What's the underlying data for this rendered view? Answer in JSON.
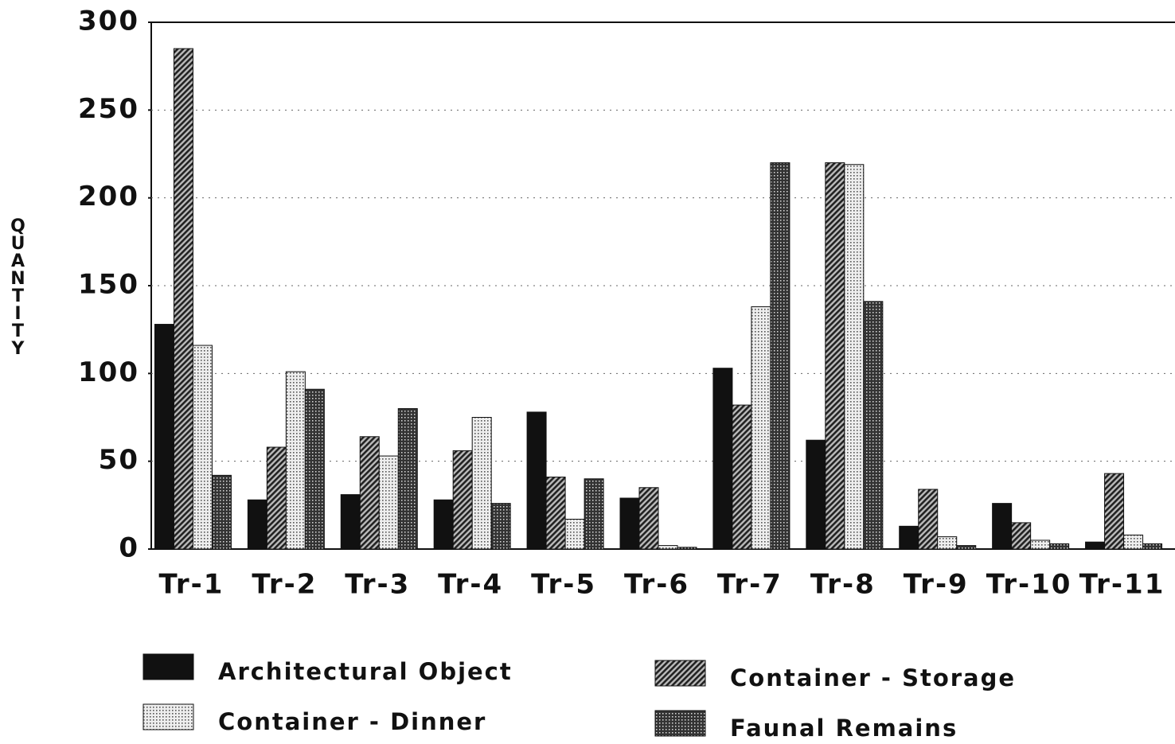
{
  "chart_data": {
    "type": "bar",
    "y_label": "QUANTITY",
    "categories": [
      "Tr-1",
      "Tr-2",
      "Tr-3",
      "Tr-4",
      "Tr-5",
      "Tr-6",
      "Tr-7",
      "Tr-8",
      "Tr-9",
      "Tr-10",
      "Tr-11"
    ],
    "series": [
      {
        "name": "Architectural Object",
        "color": "#111111",
        "pattern": "solid",
        "values": [
          128,
          28,
          31,
          28,
          78,
          29,
          103,
          62,
          13,
          26,
          4
        ]
      },
      {
        "name": "Container - Storage",
        "color": "#333333",
        "pattern": "diagonal",
        "values": [
          285,
          58,
          64,
          56,
          41,
          35,
          82,
          220,
          34,
          15,
          43
        ]
      },
      {
        "name": "Container - Dinner",
        "color": "#777777",
        "pattern": "light-dots",
        "values": [
          116,
          101,
          53,
          75,
          17,
          2,
          138,
          219,
          7,
          5,
          8
        ]
      },
      {
        "name": "Faunal Remains",
        "color": "#333333",
        "pattern": "dark-dots",
        "values": [
          42,
          91,
          80,
          26,
          40,
          1,
          220,
          141,
          2,
          3,
          3
        ]
      }
    ],
    "ylim": [
      0,
      300
    ],
    "yticks": [
      0,
      50,
      100,
      150,
      200,
      250,
      300
    ],
    "grid": true
  }
}
